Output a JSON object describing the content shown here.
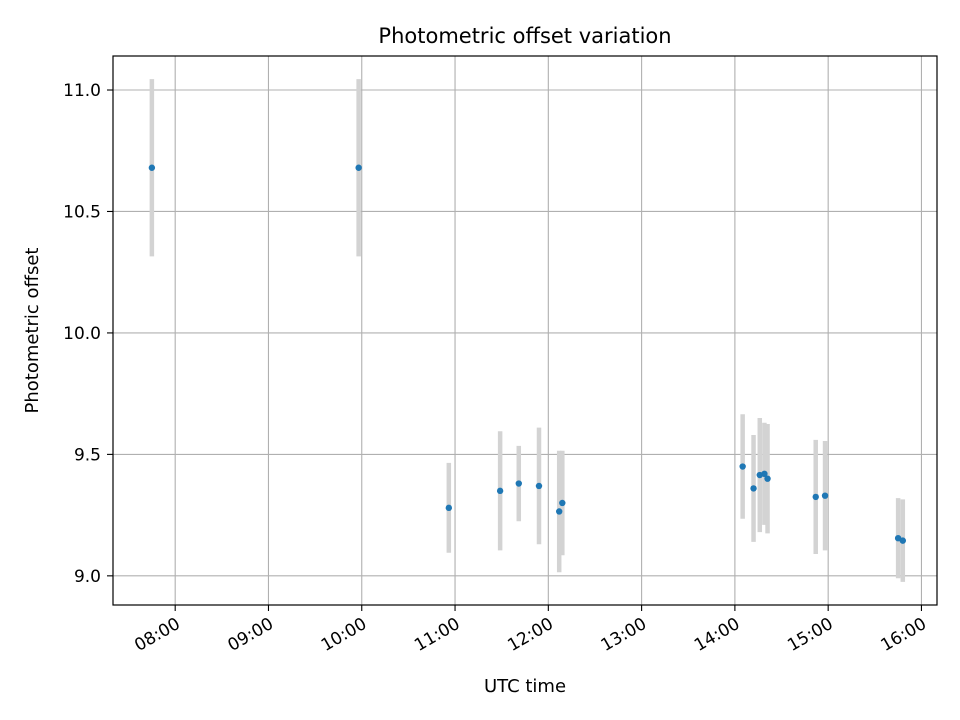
{
  "chart_data": {
    "type": "scatter",
    "title": "Photometric offset variation",
    "xlabel": "UTC time",
    "ylabel": "Photometric offset",
    "x_axis_type": "time",
    "xlim": [
      "07:20",
      "16:10"
    ],
    "ylim": [
      8.88,
      11.14
    ],
    "x_ticks": [
      "08:00",
      "09:00",
      "10:00",
      "11:00",
      "12:00",
      "13:00",
      "14:00",
      "15:00",
      "16:00"
    ],
    "y_ticks": [
      9.0,
      9.5,
      10.0,
      10.5,
      11.0
    ],
    "y_tick_labels": [
      "9.0",
      "9.5",
      "10.0",
      "10.5",
      "11.0"
    ],
    "grid": true,
    "point_color": "#1f77b4",
    "errorbar_color": "#d3d3d3",
    "points": [
      {
        "x": "07:45",
        "y": 10.68,
        "err": 0.365
      },
      {
        "x": "09:58",
        "y": 10.68,
        "err": 0.365
      },
      {
        "x": "10:56",
        "y": 9.28,
        "err": 0.185
      },
      {
        "x": "11:29",
        "y": 9.35,
        "err": 0.245
      },
      {
        "x": "11:41",
        "y": 9.38,
        "err": 0.155
      },
      {
        "x": "11:54",
        "y": 9.37,
        "err": 0.24
      },
      {
        "x": "12:07",
        "y": 9.265,
        "err": 0.25
      },
      {
        "x": "12:09",
        "y": 9.3,
        "err": 0.215
      },
      {
        "x": "14:05",
        "y": 9.45,
        "err": 0.215
      },
      {
        "x": "14:12",
        "y": 9.36,
        "err": 0.22
      },
      {
        "x": "14:16",
        "y": 9.415,
        "err": 0.235
      },
      {
        "x": "14:19",
        "y": 9.42,
        "err": 0.21
      },
      {
        "x": "14:21",
        "y": 9.4,
        "err": 0.225
      },
      {
        "x": "14:52",
        "y": 9.325,
        "err": 0.235
      },
      {
        "x": "14:58",
        "y": 9.33,
        "err": 0.225
      },
      {
        "x": "15:45",
        "y": 9.155,
        "err": 0.165
      },
      {
        "x": "15:48",
        "y": 9.145,
        "err": 0.17
      }
    ]
  }
}
